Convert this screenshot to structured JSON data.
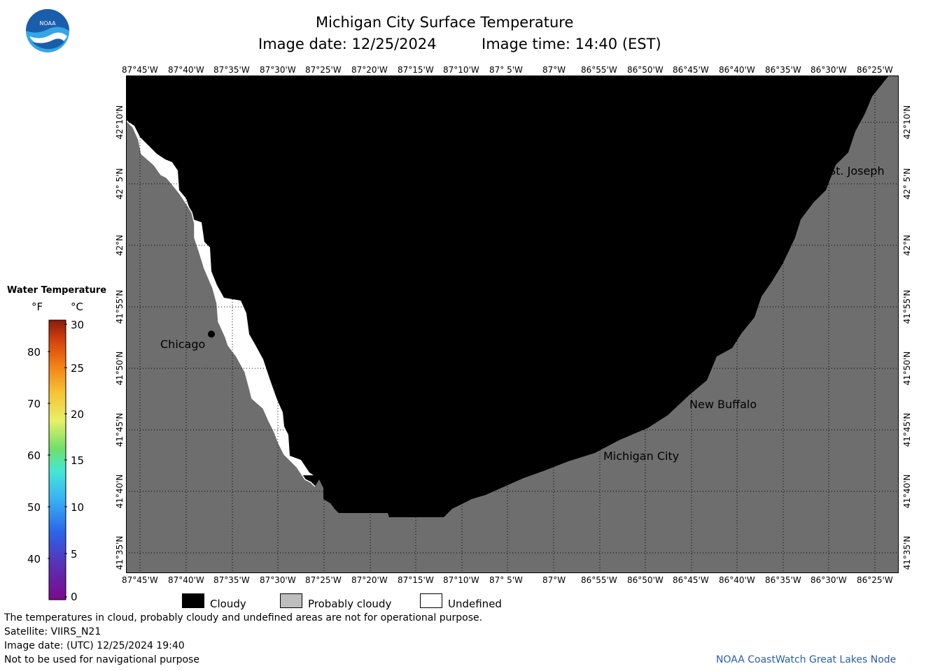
{
  "header": {
    "title": "Michigan City Surface Temperature",
    "image_date": "Image date: 12/25/2024",
    "image_time": "Image time: 14:40 (EST)"
  },
  "logo": {
    "text": "NOAA"
  },
  "axes": {
    "lon_labels": [
      "87°45'W",
      "87°40'W",
      "87°35'W",
      "87°30'W",
      "87°25'W",
      "87°20'W",
      "87°15'W",
      "87°10'W",
      "87° 5'W",
      "87°W",
      "86°55'W",
      "86°50'W",
      "86°45'W",
      "86°40'W",
      "86°35'W",
      "86°30'W",
      "86°25'W"
    ],
    "lat_labels": [
      "42°10'N",
      "42° 5'N",
      "42°N",
      "41°55'N",
      "41°50'N",
      "41°45'N",
      "41°40'N",
      "41°35'N"
    ]
  },
  "cities": [
    {
      "name": "Chicago"
    },
    {
      "name": "St. Joseph"
    },
    {
      "name": "New Buffalo"
    },
    {
      "name": "Michigan City"
    }
  ],
  "legend": {
    "title": "Water Temperature",
    "unit_f": "°F",
    "unit_c": "°C",
    "f_ticks": [
      "80",
      "70",
      "60",
      "50",
      "40"
    ],
    "c_ticks": [
      "30",
      "25",
      "20",
      "15",
      "10",
      "5",
      "0"
    ]
  },
  "categories": {
    "cloudy": "Cloudy",
    "probably_cloudy": "Probably cloudy",
    "undefined": "Undefined"
  },
  "footer": {
    "note": "The temperatures in cloud, probably cloudy and undefined areas are not for operational purpose.",
    "satellite": "Satellite: VIIRS_N21",
    "utc_date": "Image date: (UTC) 12/25/2024  19:40",
    "disclaimer": "Not to be used for navigational purpose",
    "credit": "NOAA CoastWatch Great Lakes Node"
  },
  "colors": {
    "cloudy": "#000000",
    "land": "#6e6e6e",
    "probably_cloudy": "#bebebe",
    "undefined": "#ffffff",
    "credit_text": "#2a5db0",
    "noaa_blue": "#1a5eab",
    "noaa_light": "#33a7e6"
  }
}
